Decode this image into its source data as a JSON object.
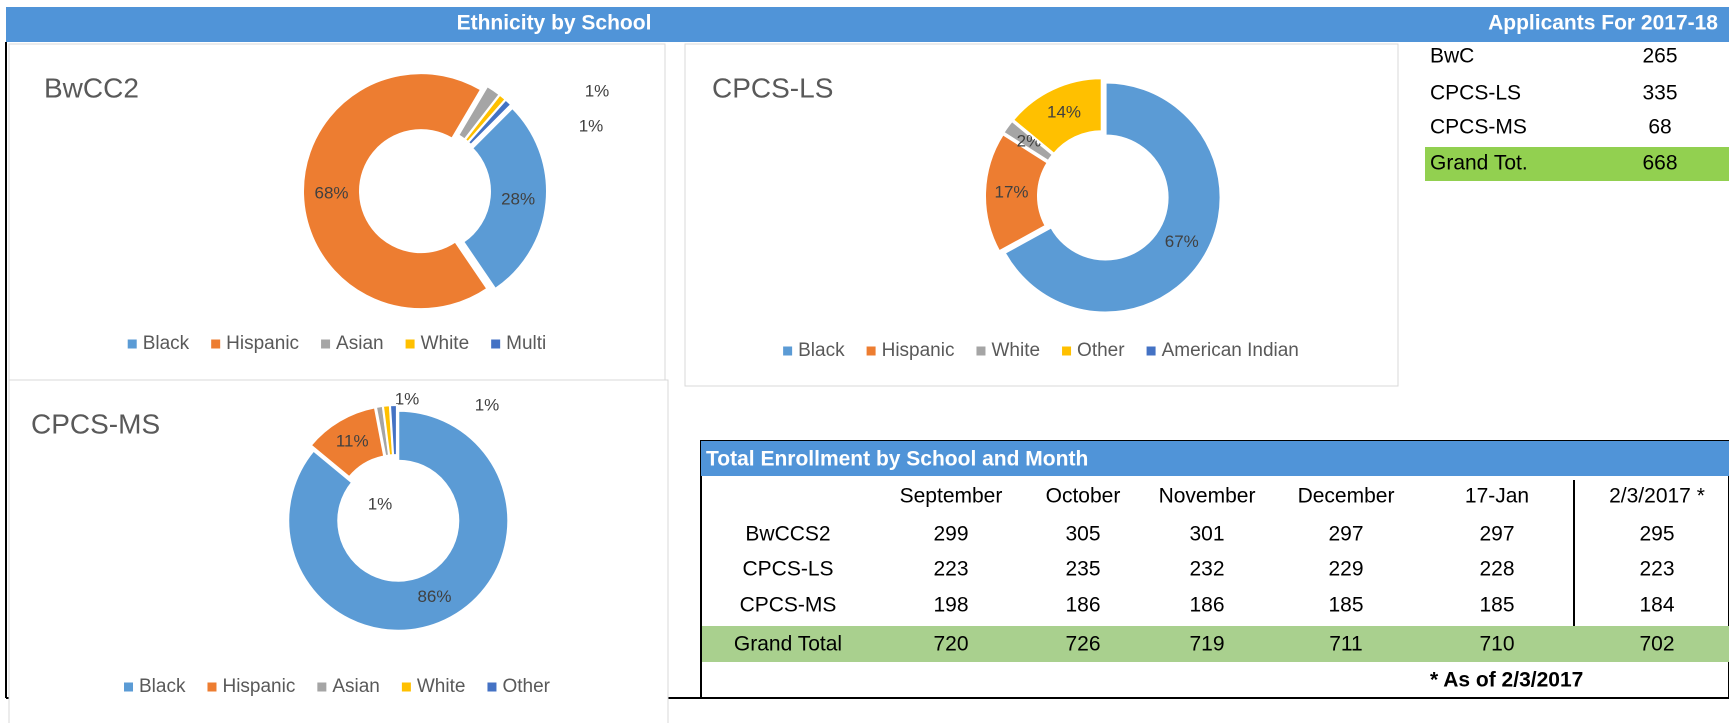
{
  "header": {
    "left_title": "Ethnicity by School",
    "right_title": "Applicants For 2017-18"
  },
  "chart_data": [
    {
      "type": "pie",
      "donut": true,
      "title": "BwCC2",
      "categories": [
        "Black",
        "Hispanic",
        "Asian",
        "White",
        "Multi"
      ],
      "values": [
        28,
        68,
        2,
        1,
        1
      ],
      "value_labels": [
        "28%",
        "68%",
        null,
        "1%",
        "1%"
      ],
      "colors": [
        "#5b9bd5",
        "#ed7d31",
        "#a5a5a5",
        "#ffc000",
        "#4472c4"
      ]
    },
    {
      "type": "pie",
      "donut": true,
      "title": "CPCS-LS",
      "categories": [
        "Black",
        "Hispanic",
        "White",
        "Other",
        "American  Indian"
      ],
      "values": [
        67,
        17,
        2,
        14,
        0
      ],
      "value_labels": [
        "67%",
        "17%",
        "2%",
        "14%",
        null
      ],
      "colors": [
        "#5b9bd5",
        "#ed7d31",
        "#a5a5a5",
        "#ffc000",
        "#4472c4"
      ]
    },
    {
      "type": "pie",
      "donut": true,
      "title": "CPCS-MS",
      "categories": [
        "Black",
        "Hispanic",
        "Asian",
        "White",
        "Other"
      ],
      "values": [
        86,
        11,
        1,
        1,
        1
      ],
      "value_labels": [
        "86%",
        "11%",
        "1%",
        "1%",
        "1%"
      ],
      "colors": [
        "#5b9bd5",
        "#ed7d31",
        "#a5a5a5",
        "#ffc000",
        "#4472c4"
      ]
    }
  ],
  "applicants": {
    "rows": [
      [
        "BwC",
        265
      ],
      [
        "CPCS-LS",
        335
      ],
      [
        "CPCS-MS",
        68
      ]
    ],
    "total": [
      "Grand Tot.",
      668
    ]
  },
  "enrollment": {
    "title": "Total Enrollment by School and Month",
    "columns": [
      "September",
      "October",
      "November",
      "December",
      "17-Jan",
      "2/3/2017 *"
    ],
    "rows": [
      {
        "label": "BwCCS2",
        "values": [
          299,
          305,
          301,
          297,
          297,
          295
        ]
      },
      {
        "label": "CPCS-LS",
        "values": [
          223,
          235,
          232,
          229,
          228,
          223
        ]
      },
      {
        "label": "CPCS-MS",
        "values": [
          198,
          186,
          186,
          185,
          185,
          184
        ]
      }
    ],
    "total": {
      "label": "Grand Total",
      "values": [
        720,
        726,
        719,
        711,
        710,
        702
      ]
    },
    "footnote": "* As of 2/3/2017"
  }
}
